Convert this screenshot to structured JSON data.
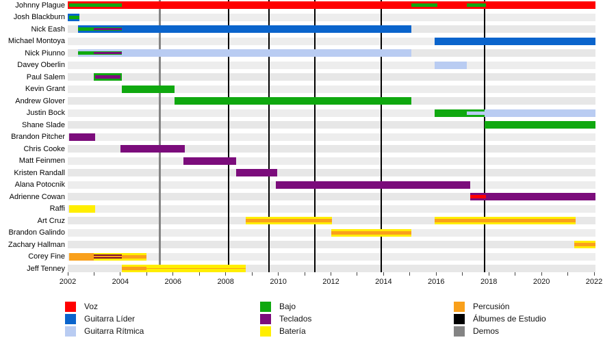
{
  "chart_data": {
    "type": "timeline",
    "title": "",
    "x_axis": {
      "min": 2002,
      "max": 2022,
      "tick_interval": 1,
      "label_interval": 2,
      "tick_labels": [
        "2002",
        "2004",
        "2006",
        "2008",
        "2010",
        "2012",
        "2014",
        "2016",
        "2018",
        "2020",
        "2022"
      ]
    },
    "roles": {
      "voz": "#FF0000",
      "guitarra_lider": "#0A64CC",
      "guitarra_ritmica": "#B9CCF2",
      "bajo": "#0FA80F",
      "teclados": "#7B0C7B",
      "bateria": "#FFEE00",
      "percusion": "#F9A01B",
      "album": "#000000",
      "demo": "#848484",
      "mix": "#7D0D2E"
    },
    "legend": {
      "columns": [
        [
          {
            "label": "Voz",
            "role": "voz"
          },
          {
            "label": "Guitarra Líder",
            "role": "guitarra_lider"
          },
          {
            "label": "Guitarra Rítmica",
            "role": "guitarra_ritmica"
          }
        ],
        [
          {
            "label": "Bajo",
            "role": "bajo"
          },
          {
            "label": "Teclados",
            "role": "teclados"
          },
          {
            "label": "Batería",
            "role": "bateria"
          }
        ],
        [
          {
            "label": "Percusión",
            "role": "percusion"
          },
          {
            "label": "Álbumes de Estudio",
            "role": "album"
          },
          {
            "label": "Demos",
            "role": "demo"
          }
        ]
      ]
    },
    "events": [
      {
        "name": "albums",
        "role": "album",
        "years": [
          2008.1,
          2009.65,
          2011.4,
          2013.9,
          2017.85
        ],
        "line_width": 2
      },
      {
        "name": "demos",
        "role": "demo",
        "years": [
          2005.5
        ],
        "line_width": 3
      }
    ],
    "members": [
      {
        "name": "Johnny Plague",
        "segments": [
          {
            "role": "voz",
            "layer": "full",
            "start": 2002.0,
            "end": 2022.05
          },
          {
            "role": "bajo",
            "layer": "stripe",
            "start": 2002.05,
            "end": 2004.05
          },
          {
            "role": "bajo",
            "layer": "stripe",
            "start": 2015.05,
            "end": 2016.05
          },
          {
            "role": "bajo",
            "layer": "stripe",
            "start": 2017.15,
            "end": 2017.9
          }
        ]
      },
      {
        "name": "Josh Blackburn",
        "segments": [
          {
            "role": "guitarra_lider",
            "layer": "full",
            "start": 2002.0,
            "end": 2002.45
          },
          {
            "role": "bajo",
            "layer": "stripe",
            "start": 2002.05,
            "end": 2002.45
          }
        ]
      },
      {
        "name": "Nick Eash",
        "segments": [
          {
            "role": "guitarra_lider",
            "layer": "full",
            "start": 2002.4,
            "end": 2015.05
          },
          {
            "role": "bajo",
            "layer": "stripe",
            "start": 2002.4,
            "end": 2004.05
          },
          {
            "role": "teclados",
            "layer": "inner",
            "start": 2003.0,
            "end": 2004.05
          }
        ]
      },
      {
        "name": "Michael Montoya",
        "segments": [
          {
            "role": "guitarra_lider",
            "layer": "full",
            "start": 2015.95,
            "end": 2022.05
          }
        ]
      },
      {
        "name": "Nick Piunno",
        "segments": [
          {
            "role": "guitarra_ritmica",
            "layer": "full",
            "start": 2002.4,
            "end": 2015.05
          },
          {
            "role": "bajo",
            "layer": "stripe",
            "start": 2002.4,
            "end": 2004.05
          },
          {
            "role": "teclados",
            "layer": "inner",
            "start": 2003.0,
            "end": 2004.05
          }
        ]
      },
      {
        "name": "Davey Oberlin",
        "segments": [
          {
            "role": "guitarra_ritmica",
            "layer": "full",
            "start": 2015.95,
            "end": 2017.15
          }
        ]
      },
      {
        "name": "Paul Salem",
        "segments": [
          {
            "role": "bajo",
            "layer": "full",
            "start": 2003.0,
            "end": 2004.05
          },
          {
            "role": "teclados",
            "layer": "stripe",
            "start": 2003.05,
            "end": 2004.0
          }
        ]
      },
      {
        "name": "Kevin Grant",
        "segments": [
          {
            "role": "bajo",
            "layer": "full",
            "start": 2004.05,
            "end": 2006.05
          }
        ]
      },
      {
        "name": "Andrew Glover",
        "segments": [
          {
            "role": "bajo",
            "layer": "full",
            "start": 2006.05,
            "end": 2015.05
          }
        ]
      },
      {
        "name": "Justin Bock",
        "segments": [
          {
            "role": "bajo",
            "layer": "full",
            "start": 2015.95,
            "end": 2017.85
          },
          {
            "role": "guitarra_ritmica",
            "layer": "stripe",
            "start": 2017.15,
            "end": 2017.85
          },
          {
            "role": "guitarra_ritmica",
            "layer": "full",
            "start": 2017.85,
            "end": 2022.05
          }
        ]
      },
      {
        "name": "Shane Slade",
        "segments": [
          {
            "role": "bajo",
            "layer": "full",
            "start": 2017.85,
            "end": 2022.05
          }
        ]
      },
      {
        "name": "Brandon Pitcher",
        "segments": [
          {
            "role": "teclados",
            "layer": "full",
            "start": 2002.05,
            "end": 2003.05
          }
        ]
      },
      {
        "name": "Chris Cooke",
        "segments": [
          {
            "role": "teclados",
            "layer": "full",
            "start": 2004.0,
            "end": 2006.45
          }
        ]
      },
      {
        "name": "Matt Feinmen",
        "segments": [
          {
            "role": "teclados",
            "layer": "full",
            "start": 2006.4,
            "end": 2008.4
          }
        ]
      },
      {
        "name": "Kristen Randall",
        "segments": [
          {
            "role": "teclados",
            "layer": "full",
            "start": 2008.4,
            "end": 2009.95
          }
        ]
      },
      {
        "name": "Alana Potocnik",
        "segments": [
          {
            "role": "teclados",
            "layer": "full",
            "start": 2009.9,
            "end": 2017.3
          }
        ]
      },
      {
        "name": "Adrienne Cowan",
        "segments": [
          {
            "role": "teclados",
            "layer": "full",
            "start": 2017.3,
            "end": 2022.05
          },
          {
            "role": "voz",
            "layer": "stripe",
            "start": 2017.3,
            "end": 2017.9
          }
        ]
      },
      {
        "name": "Raffi",
        "segments": [
          {
            "role": "bateria",
            "layer": "full",
            "start": 2002.05,
            "end": 2003.05
          }
        ]
      },
      {
        "name": "Art Cruz",
        "segments": [
          {
            "role": "bateria",
            "layer": "full",
            "start": 2008.75,
            "end": 2012.05
          },
          {
            "role": "percusion",
            "layer": "stripe",
            "start": 2008.75,
            "end": 2012.05
          },
          {
            "role": "bateria",
            "layer": "full",
            "start": 2015.95,
            "end": 2021.3
          },
          {
            "role": "percusion",
            "layer": "stripe",
            "start": 2015.95,
            "end": 2021.3
          }
        ]
      },
      {
        "name": "Brandon Galindo",
        "segments": [
          {
            "role": "bateria",
            "layer": "full",
            "start": 2012.0,
            "end": 2015.05
          },
          {
            "role": "percusion",
            "layer": "stripe",
            "start": 2012.0,
            "end": 2015.05
          }
        ]
      },
      {
        "name": "Zachary Hallman",
        "segments": [
          {
            "role": "bateria",
            "layer": "full",
            "start": 2021.25,
            "end": 2022.05
          },
          {
            "role": "percusion",
            "layer": "stripe",
            "start": 2021.25,
            "end": 2022.05
          }
        ]
      },
      {
        "name": "Corey Fine",
        "segments": [
          {
            "role": "percusion",
            "layer": "full",
            "start": 2002.05,
            "end": 2003.0
          },
          {
            "role": "bateria",
            "layer": "full",
            "start": 2003.0,
            "end": 2005.0
          },
          {
            "role": "percusion",
            "layer": "stripe",
            "start": 2003.0,
            "end": 2005.0
          },
          {
            "role": "mix",
            "layer": "edges",
            "start": 2003.0,
            "end": 2004.05
          }
        ]
      },
      {
        "name": "Jeff Tenney",
        "segments": [
          {
            "role": "bateria",
            "layer": "full",
            "start": 2004.05,
            "end": 2008.75
          },
          {
            "role": "percusion",
            "layer": "stripe",
            "start": 2004.05,
            "end": 2005.0
          },
          {
            "role": "percusion",
            "layer": "thin",
            "start": 2005.0,
            "end": 2008.75
          }
        ]
      }
    ],
    "layout_hints": {
      "grid": "horizontal row bands",
      "legend_position": "bottom, 3 columns",
      "row_band_color": "#EAEAEA"
    }
  }
}
